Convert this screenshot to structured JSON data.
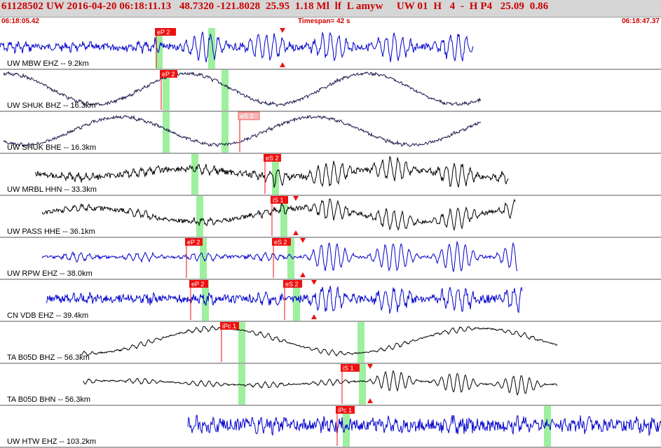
{
  "header": {
    "event_line": "61128502 UW 2016-04-20 06:18:11.13   48.7320 -121.8028  25.95  1.18 Ml  lf  L amyw     UW 01  H   4  -  H P4   25.09  0.86",
    "start_time": "06:18:05.42",
    "timespan": "Timespan=  42 s",
    "end_time": "06:18:47.37"
  },
  "colors": {
    "pick_red": "#ee1111",
    "pick_pink": "#f6b7b7",
    "window_green": "#9ef09e",
    "trace_blue": "#0000cc",
    "trace_black": "#000000",
    "trace_navy": "#1a1a4a",
    "divider": "#555555"
  },
  "traces": [
    {
      "label": "UW MBW EHZ -- 9.2km",
      "color": "blue",
      "picks": [
        {
          "label": "eP 2",
          "style": "red"
        }
      ],
      "has_markers": true
    },
    {
      "label": "UW SHUK BHZ -- 16.3km",
      "color": "navy",
      "picks": [
        {
          "label": "eP 2",
          "style": "red"
        }
      ],
      "has_markers": false
    },
    {
      "label": "UW SHUK BHE -- 16.3km",
      "color": "navy",
      "picks": [
        {
          "label": "eS 2",
          "style": "pink"
        }
      ],
      "has_markers": false
    },
    {
      "label": "UW MRBL HHN -- 33.3km",
      "color": "black",
      "picks": [
        {
          "label": "eS 2",
          "style": "red"
        }
      ],
      "has_markers": false
    },
    {
      "label": "UW PASS HHE -- 36.1km",
      "color": "black",
      "picks": [
        {
          "label": "iS 1",
          "style": "red"
        }
      ],
      "has_markers": true
    },
    {
      "label": "UW RPW EHZ -- 38.0km",
      "color": "blue",
      "picks": [
        {
          "label": "eP 2",
          "style": "red"
        },
        {
          "label": "eS 2",
          "style": "red"
        }
      ],
      "has_markers": true
    },
    {
      "label": "CN VDB EHZ -- 39.4km",
      "color": "blue",
      "picks": [
        {
          "label": "eP 2",
          "style": "red"
        },
        {
          "label": "eS 2",
          "style": "red"
        }
      ],
      "has_markers": true
    },
    {
      "label": "TA B05D BHZ -- 56.3km",
      "color": "black",
      "picks": [
        {
          "label": "iPc 1",
          "style": "red"
        }
      ],
      "has_markers": false
    },
    {
      "label": "TA B05D BHN -- 56.3km",
      "color": "black",
      "picks": [
        {
          "label": "iS 1",
          "style": "red"
        }
      ],
      "has_markers": true
    },
    {
      "label": "UW HTW EHZ -- 103.2km",
      "color": "blue",
      "picks": [
        {
          "label": "iPc 1",
          "style": "red"
        }
      ],
      "has_markers": false
    }
  ]
}
